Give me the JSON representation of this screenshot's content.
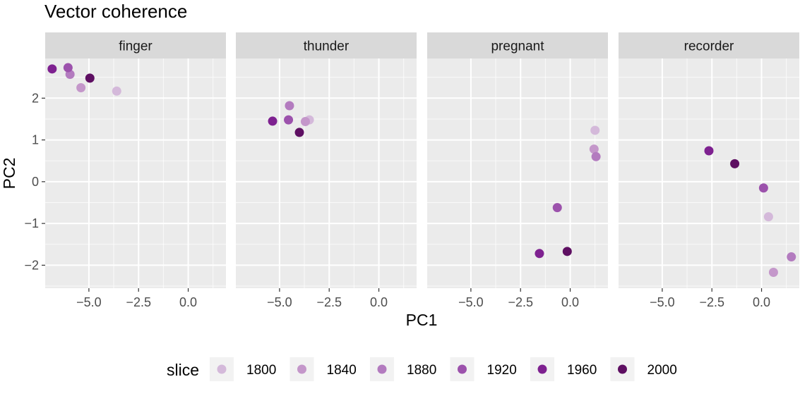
{
  "chart_data": {
    "type": "scatter",
    "title": "Vector coherence",
    "xlabel": "PC1",
    "ylabel": "PC2",
    "xlim": [
      -7.2,
      1.9
    ],
    "ylim": [
      -2.55,
      2.95
    ],
    "x_ticks": [
      -5.0,
      -2.5,
      0.0
    ],
    "x_tick_labels": [
      "−5.0",
      "−2.5",
      "0.0"
    ],
    "y_ticks": [
      2,
      1,
      0,
      -1,
      -2
    ],
    "y_tick_labels": [
      "2",
      "1",
      "0",
      "−1",
      "−2"
    ],
    "grid": true,
    "legend": {
      "title": "slice",
      "position": "bottom",
      "entries": [
        {
          "label": "1800",
          "color": "#d4b9da"
        },
        {
          "label": "1840",
          "color": "#c497ca"
        },
        {
          "label": "1880",
          "color": "#b37bbf"
        },
        {
          "label": "1920",
          "color": "#9c52ac"
        },
        {
          "label": "1960",
          "color": "#7e2190"
        },
        {
          "label": "2000",
          "color": "#5e0f62"
        }
      ]
    },
    "facets": [
      {
        "name": "finger",
        "points": [
          {
            "slice": "1800",
            "x": -3.6,
            "y": 2.17
          },
          {
            "slice": "1840",
            "x": -5.4,
            "y": 2.25
          },
          {
            "slice": "1880",
            "x": -5.95,
            "y": 2.57
          },
          {
            "slice": "1920",
            "x": -6.05,
            "y": 2.73
          },
          {
            "slice": "1960",
            "x": -6.85,
            "y": 2.7
          },
          {
            "slice": "2000",
            "x": -4.95,
            "y": 2.48
          }
        ]
      },
      {
        "name": "thunder",
        "points": [
          {
            "slice": "1800",
            "x": -3.5,
            "y": 1.48
          },
          {
            "slice": "1840",
            "x": -3.7,
            "y": 1.44
          },
          {
            "slice": "1880",
            "x": -4.5,
            "y": 1.82
          },
          {
            "slice": "1920",
            "x": -4.55,
            "y": 1.48
          },
          {
            "slice": "1960",
            "x": -5.35,
            "y": 1.45
          },
          {
            "slice": "2000",
            "x": -4.0,
            "y": 1.18
          }
        ]
      },
      {
        "name": "pregnant",
        "points": [
          {
            "slice": "1800",
            "x": 1.25,
            "y": 1.23
          },
          {
            "slice": "1840",
            "x": 1.2,
            "y": 0.78
          },
          {
            "slice": "1880",
            "x": 1.3,
            "y": 0.6
          },
          {
            "slice": "1920",
            "x": -0.65,
            "y": -0.62
          },
          {
            "slice": "1960",
            "x": -1.55,
            "y": -1.72
          },
          {
            "slice": "2000",
            "x": -0.15,
            "y": -1.67
          }
        ]
      },
      {
        "name": "recorder",
        "points": [
          {
            "slice": "1800",
            "x": 0.35,
            "y": -0.84
          },
          {
            "slice": "1840",
            "x": 0.6,
            "y": -2.17
          },
          {
            "slice": "1880",
            "x": 1.5,
            "y": -1.8
          },
          {
            "slice": "1920",
            "x": 0.1,
            "y": -0.15
          },
          {
            "slice": "1960",
            "x": -2.65,
            "y": 0.74
          },
          {
            "slice": "2000",
            "x": -1.35,
            "y": 0.43
          }
        ]
      }
    ]
  }
}
